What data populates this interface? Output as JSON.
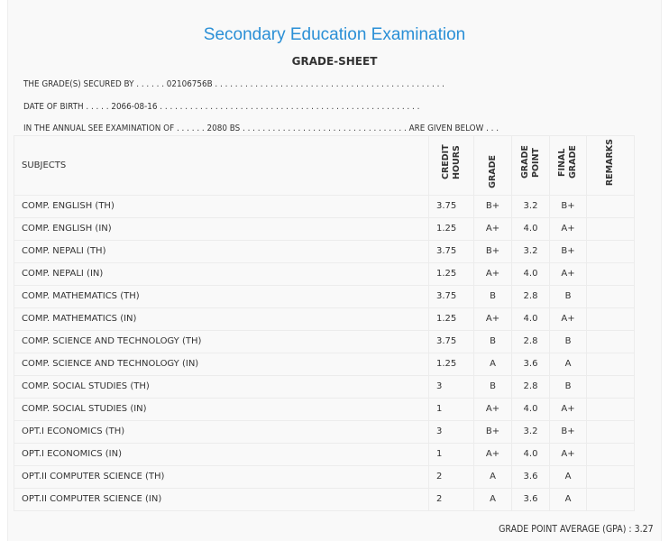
{
  "header": {
    "title": "Secondary Education Examination",
    "subtitle": "GRADE-SHEET"
  },
  "info": {
    "secured_by": "THE GRADE(S) SECURED BY . . . . . . 02106756B . . . . . . . . . . . . . . . . . . . . . . . . . . . . . . . . . . . . . . . . . . . . . .",
    "dob": "DATE OF BIRTH . . . . . 2066-08-16 . . . . . . . . . . . . . . . . . . . . . . . . . . . . . . . . . . . . . . . . . . . . . . . . . . . .",
    "exam": "IN THE ANNUAL SEE EXAMINATION OF . . . . . . 2080 BS . . . . . . . . . . . . . . . . . . . . . . . . . . . . . . . . . ARE GIVEN BELOW . . ."
  },
  "table": {
    "headers": {
      "subjects": "SUBJECTS",
      "credit_hours": "CREDIT HOURS",
      "grade": "GRADE",
      "grade_point": "GRADE POINT",
      "final_grade": "FINAL GRADE",
      "remarks": "REMARKS"
    },
    "rows": [
      {
        "subject": "COMP. ENGLISH (TH)",
        "credit": "3.75",
        "grade": "B+",
        "gp": "3.2",
        "final": "B+"
      },
      {
        "subject": "COMP. ENGLISH (IN)",
        "credit": "1.25",
        "grade": "A+",
        "gp": "4.0",
        "final": "A+"
      },
      {
        "subject": "COMP. NEPALI (TH)",
        "credit": "3.75",
        "grade": "B+",
        "gp": "3.2",
        "final": "B+"
      },
      {
        "subject": "COMP. NEPALI (IN)",
        "credit": "1.25",
        "grade": "A+",
        "gp": "4.0",
        "final": "A+"
      },
      {
        "subject": "COMP. MATHEMATICS (TH)",
        "credit": "3.75",
        "grade": "B",
        "gp": "2.8",
        "final": "B"
      },
      {
        "subject": "COMP. MATHEMATICS (IN)",
        "credit": "1.25",
        "grade": "A+",
        "gp": "4.0",
        "final": "A+"
      },
      {
        "subject": "COMP. SCIENCE AND TECHNOLOGY (TH)",
        "credit": "3.75",
        "grade": "B",
        "gp": "2.8",
        "final": "B"
      },
      {
        "subject": "COMP. SCIENCE AND TECHNOLOGY (IN)",
        "credit": "1.25",
        "grade": "A",
        "gp": "3.6",
        "final": "A"
      },
      {
        "subject": "COMP. SOCIAL STUDIES (TH)",
        "credit": "3",
        "grade": "B",
        "gp": "2.8",
        "final": "B"
      },
      {
        "subject": "COMP. SOCIAL STUDIES (IN)",
        "credit": "1",
        "grade": "A+",
        "gp": "4.0",
        "final": "A+"
      },
      {
        "subject": "OPT.I ECONOMICS (TH)",
        "credit": "3",
        "grade": "B+",
        "gp": "3.2",
        "final": "B+"
      },
      {
        "subject": "OPT.I ECONOMICS (IN)",
        "credit": "1",
        "grade": "A+",
        "gp": "4.0",
        "final": "A+"
      },
      {
        "subject": "OPT.II COMPUTER SCIENCE (TH)",
        "credit": "2",
        "grade": "A",
        "gp": "3.6",
        "final": "A"
      },
      {
        "subject": "OPT.II COMPUTER SCIENCE (IN)",
        "credit": "2",
        "grade": "A",
        "gp": "3.6",
        "final": "A"
      }
    ]
  },
  "gpa": "GRADE POINT AVERAGE (GPA) : 3.27"
}
